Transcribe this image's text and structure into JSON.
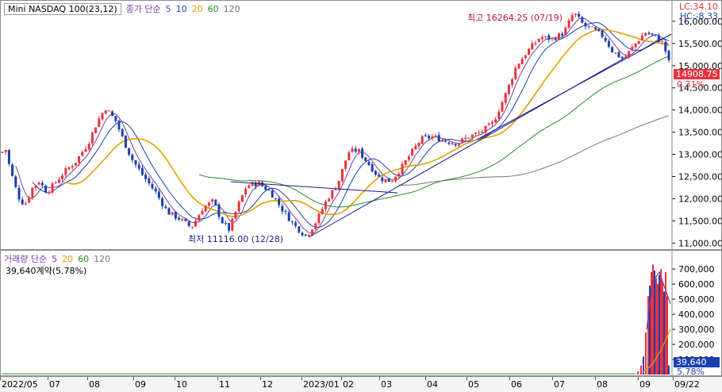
{
  "price_legend": {
    "title": "Mini NASDAQ 100(23,12)",
    "ma_label": "종가 단순",
    "ma_periods": [
      {
        "label": "5",
        "color": "#7a3e9d"
      },
      {
        "label": "10",
        "color": "#1a3fb0"
      },
      {
        "label": "20",
        "color": "#e0a000"
      },
      {
        "label": "60",
        "color": "#2b8a2b"
      },
      {
        "label": "120",
        "color": "#777777"
      }
    ]
  },
  "lc_hc": {
    "lc": "LC:34.10",
    "hc": "HC:-8.33"
  },
  "annotations": {
    "high": "최고 16264.25 (07/19)",
    "low": "최저 11116.00 (12/28)"
  },
  "current_price": {
    "value": "14908.75",
    "pct": "0.31%"
  },
  "volume_legend": {
    "title": "거래량 단순",
    "periods": [
      {
        "label": "5",
        "color": "#7a3e9d"
      },
      {
        "label": "20",
        "color": "#e0a000"
      },
      {
        "label": "60",
        "color": "#2b8a2b"
      },
      {
        "label": "120",
        "color": "#777777"
      }
    ],
    "info": "39,640계약(5.78%)"
  },
  "current_volume": {
    "value": "39,640",
    "pct": "5.78%"
  },
  "colors": {
    "up": "#e8323c",
    "down": "#1a3fb0",
    "ma5": "#7a3e9d",
    "ma10": "#1a3fb0",
    "ma20": "#e0a000",
    "ma60": "#2b8a2b",
    "ma120": "#777777",
    "trend": "#1a1a8a"
  },
  "chart_data": {
    "type": "candlestick",
    "price_axis": {
      "ticks": [
        "11,000.00",
        "11,500.00",
        "12,000.00",
        "12,500.00",
        "13,000.00",
        "13,500.00",
        "14,000.00",
        "14,500.00",
        "15,000.00",
        "15,500.00",
        "16,000.00"
      ],
      "tick_values": [
        11000,
        11500,
        12000,
        12500,
        13000,
        13500,
        14000,
        14500,
        15000,
        15500,
        16000
      ],
      "ylim": [
        10880,
        16320
      ]
    },
    "volume_axis": {
      "ticks": [
        "100,000",
        "200,000",
        "300,000",
        "400,000",
        "500,000",
        "600,000",
        "700,000"
      ],
      "tick_values": [
        100000,
        200000,
        300000,
        400000,
        500000,
        600000,
        700000
      ],
      "ylim": [
        0,
        790000
      ]
    },
    "time_axis": {
      "labels": [
        "2022/05",
        "07",
        "08",
        "09",
        "10",
        "11",
        "12",
        "2023/01",
        "02",
        "03",
        "04",
        "05",
        "06",
        "07",
        "08",
        "09",
        "09/22"
      ]
    },
    "price_waypoints": [
      [
        0,
        12950
      ],
      [
        5,
        13200
      ],
      [
        12,
        12650
      ],
      [
        22,
        12050
      ],
      [
        30,
        11850
      ],
      [
        40,
        12250
      ],
      [
        48,
        12400
      ],
      [
        58,
        12150
      ],
      [
        68,
        12350
      ],
      [
        80,
        12600
      ],
      [
        95,
        12850
      ],
      [
        110,
        13250
      ],
      [
        122,
        13750
      ],
      [
        132,
        14050
      ],
      [
        145,
        13750
      ],
      [
        155,
        13300
      ],
      [
        165,
        12900
      ],
      [
        180,
        12500
      ],
      [
        195,
        12150
      ],
      [
        210,
        11700
      ],
      [
        225,
        11550
      ],
      [
        240,
        11350
      ],
      [
        255,
        11800
      ],
      [
        268,
        11950
      ],
      [
        278,
        11500
      ],
      [
        288,
        11300
      ],
      [
        298,
        11800
      ],
      [
        310,
        12300
      ],
      [
        325,
        12350
      ],
      [
        340,
        12150
      ],
      [
        355,
        11750
      ],
      [
        370,
        11400
      ],
      [
        385,
        11150
      ],
      [
        398,
        11500
      ],
      [
        410,
        11950
      ],
      [
        425,
        12350
      ],
      [
        438,
        13050
      ],
      [
        450,
        13100
      ],
      [
        465,
        12750
      ],
      [
        478,
        12450
      ],
      [
        492,
        12400
      ],
      [
        505,
        12700
      ],
      [
        518,
        13050
      ],
      [
        530,
        13350
      ],
      [
        545,
        13400
      ],
      [
        560,
        13300
      ],
      [
        575,
        13250
      ],
      [
        590,
        13400
      ],
      [
        605,
        13500
      ],
      [
        620,
        13700
      ],
      [
        635,
        14300
      ],
      [
        650,
        15000
      ],
      [
        665,
        15350
      ],
      [
        680,
        15650
      ],
      [
        695,
        15600
      ],
      [
        710,
        15750
      ],
      [
        722,
        16200
      ],
      [
        735,
        15900
      ],
      [
        748,
        15800
      ],
      [
        760,
        15650
      ],
      [
        772,
        15300
      ],
      [
        785,
        15150
      ],
      [
        800,
        15500
      ],
      [
        812,
        15750
      ],
      [
        825,
        15650
      ],
      [
        835,
        15500
      ],
      [
        840,
        15200
      ],
      [
        845,
        14900
      ]
    ],
    "volume_bars": [
      [
        803,
        20000
      ],
      [
        807,
        60000
      ],
      [
        810,
        120000
      ],
      [
        813,
        280000
      ],
      [
        816,
        520000
      ],
      [
        818,
        590000
      ],
      [
        820,
        680000
      ],
      [
        822,
        730000
      ],
      [
        824,
        690000
      ],
      [
        826,
        640000
      ],
      [
        828,
        600000
      ],
      [
        830,
        660000
      ],
      [
        832,
        700000
      ],
      [
        834,
        620000
      ],
      [
        836,
        550000
      ],
      [
        838,
        680000
      ],
      [
        840,
        520000
      ],
      [
        842,
        60000
      ]
    ]
  }
}
